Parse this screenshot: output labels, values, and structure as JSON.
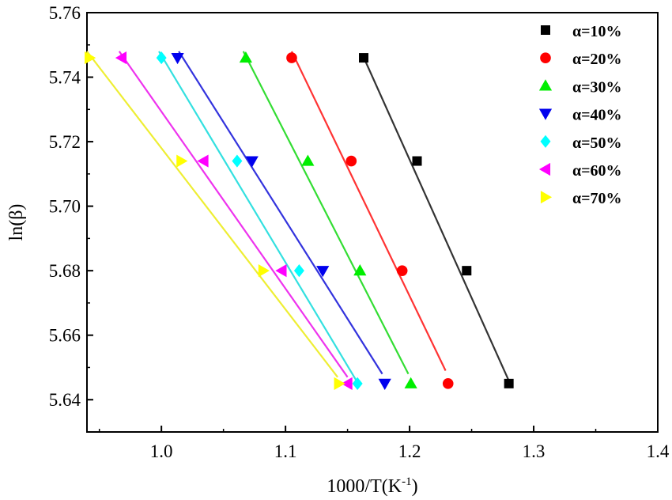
{
  "chart_data": {
    "type": "scatter",
    "xlabel": "1000/T(K",
    "xlabel_sup": "-1",
    "xlabel_close": ")",
    "ylabel": "ln(β)",
    "xlim": [
      0.94,
      1.4
    ],
    "ylim": [
      5.63,
      5.76
    ],
    "xticks": [
      1.0,
      1.1,
      1.2,
      1.3,
      1.4
    ],
    "xtick_labels": [
      "1.0",
      "1.1",
      "1.2",
      "1.3",
      "1.4"
    ],
    "yticks": [
      5.64,
      5.66,
      5.68,
      5.7,
      5.72,
      5.74,
      5.76
    ],
    "ytick_labels": [
      "5.64",
      "5.66",
      "5.68",
      "5.70",
      "5.72",
      "5.74",
      "5.76"
    ],
    "grid": false,
    "legend_position": "top-right",
    "series": [
      {
        "name": "α=10%",
        "marker": "square",
        "color": "#000000",
        "line_color": "#333333",
        "x": [
          1.163,
          1.206,
          1.246,
          1.28
        ],
        "y": [
          5.746,
          5.714,
          5.68,
          5.645
        ],
        "fit_x": [
          1.162,
          1.281
        ],
        "fit_y": [
          5.747,
          5.645
        ]
      },
      {
        "name": "α=20%",
        "marker": "circle",
        "color": "#ff0000",
        "line_color": "#ff3333",
        "x": [
          1.105,
          1.153,
          1.194,
          1.231
        ],
        "y": [
          5.746,
          5.714,
          5.68,
          5.645
        ],
        "fit_x": [
          1.105,
          1.229
        ],
        "fit_y": [
          5.748,
          5.649
        ]
      },
      {
        "name": "α=30%",
        "marker": "triangle-up",
        "color": "#00ee00",
        "line_color": "#33dd33",
        "x": [
          1.068,
          1.118,
          1.16,
          1.201
        ],
        "y": [
          5.746,
          5.714,
          5.68,
          5.645
        ],
        "fit_x": [
          1.066,
          1.199
        ],
        "fit_y": [
          5.748,
          5.648
        ]
      },
      {
        "name": "α=40%",
        "marker": "triangle-down",
        "color": "#0000ee",
        "line_color": "#3333dd",
        "x": [
          1.013,
          1.073,
          1.13,
          1.18
        ],
        "y": [
          5.746,
          5.714,
          5.68,
          5.645
        ],
        "fit_x": [
          1.014,
          1.178
        ],
        "fit_y": [
          5.748,
          5.648
        ]
      },
      {
        "name": "α=50%",
        "marker": "diamond",
        "color": "#00ffff",
        "line_color": "#33e0e0",
        "x": [
          1.0,
          1.061,
          1.111,
          1.158
        ],
        "y": [
          5.746,
          5.714,
          5.68,
          5.645
        ],
        "fit_x": [
          0.998,
          1.157
        ],
        "fit_y": [
          5.748,
          5.646
        ]
      },
      {
        "name": "α=60%",
        "marker": "triangle-left",
        "color": "#ff00ff",
        "line_color": "#ee33ee",
        "x": [
          0.968,
          1.034,
          1.097,
          1.15
        ],
        "y": [
          5.746,
          5.714,
          5.68,
          5.645
        ],
        "fit_x": [
          0.966,
          1.15
        ],
        "fit_y": [
          5.748,
          5.647
        ]
      },
      {
        "name": "α=70%",
        "marker": "triangle-right",
        "color": "#ffff00",
        "line_color": "#eeee33",
        "x": [
          0.942,
          1.016,
          1.082,
          1.143
        ],
        "y": [
          5.746,
          5.714,
          5.68,
          5.645
        ],
        "fit_x": [
          0.94,
          1.142
        ],
        "fit_y": [
          5.748,
          5.647
        ]
      }
    ]
  }
}
